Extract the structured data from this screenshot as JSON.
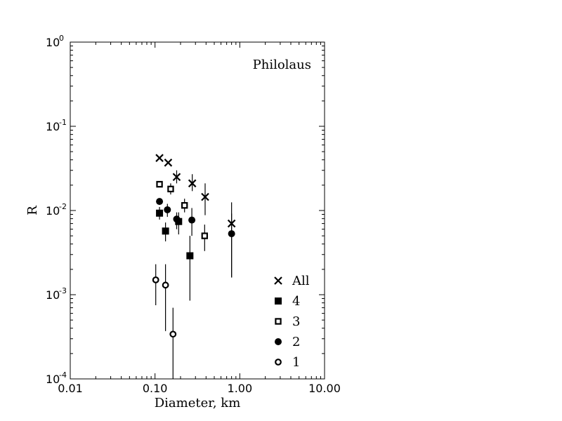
{
  "chart_data": {
    "type": "scatter",
    "title": "",
    "annotation": "Philolaus",
    "xlabel": "Diameter, km",
    "ylabel": "R",
    "xscale": "log",
    "yscale": "log",
    "xlim": [
      0.01,
      10
    ],
    "ylim": [
      0.0001,
      1
    ],
    "x_ticks": [
      {
        "value": 0.01,
        "label": "0.01"
      },
      {
        "value": 0.1,
        "label": "0.10"
      },
      {
        "value": 1,
        "label": "1.00"
      },
      {
        "value": 10,
        "label": "10.00"
      }
    ],
    "y_ticks": [
      {
        "value": 0.0001,
        "base": "10",
        "exp": "-4"
      },
      {
        "value": 0.001,
        "base": "10",
        "exp": "-3"
      },
      {
        "value": 0.01,
        "base": "10",
        "exp": "-2"
      },
      {
        "value": 0.1,
        "base": "10",
        "exp": "-1"
      },
      {
        "value": 1,
        "base": "10",
        "exp": "0"
      }
    ],
    "legend_position": "lower-right",
    "series": [
      {
        "name": "All",
        "marker": "x",
        "points": [
          {
            "x": 0.113,
            "y": 0.042,
            "lo": 0.042,
            "hi": 0.042
          },
          {
            "x": 0.143,
            "y": 0.037,
            "lo": 0.037,
            "hi": 0.037
          },
          {
            "x": 0.18,
            "y": 0.025,
            "lo": 0.021,
            "hi": 0.03
          },
          {
            "x": 0.275,
            "y": 0.021,
            "lo": 0.017,
            "hi": 0.027
          },
          {
            "x": 0.39,
            "y": 0.0145,
            "lo": 0.0088,
            "hi": 0.021
          },
          {
            "x": 0.8,
            "y": 0.007,
            "lo": 0.0016,
            "hi": 0.0125
          }
        ]
      },
      {
        "name": "4",
        "marker": "filled-square",
        "points": [
          {
            "x": 0.113,
            "y": 0.0093,
            "lo": 0.0078,
            "hi": 0.011
          },
          {
            "x": 0.133,
            "y": 0.0057,
            "lo": 0.0043,
            "hi": 0.0072
          },
          {
            "x": 0.19,
            "y": 0.0074,
            "lo": 0.0052,
            "hi": 0.0095
          },
          {
            "x": 0.258,
            "y": 0.0029,
            "lo": 0.00085,
            "hi": 0.005
          }
        ]
      },
      {
        "name": "3",
        "marker": "open-square",
        "points": [
          {
            "x": 0.113,
            "y": 0.0205,
            "lo": 0.0205,
            "hi": 0.0205
          },
          {
            "x": 0.153,
            "y": 0.018,
            "lo": 0.0155,
            "hi": 0.021
          },
          {
            "x": 0.223,
            "y": 0.0115,
            "lo": 0.0095,
            "hi": 0.0138
          },
          {
            "x": 0.385,
            "y": 0.005,
            "lo": 0.0033,
            "hi": 0.0068
          }
        ]
      },
      {
        "name": "2",
        "marker": "filled-circle",
        "points": [
          {
            "x": 0.113,
            "y": 0.0128,
            "lo": 0.0128,
            "hi": 0.0128
          },
          {
            "x": 0.14,
            "y": 0.0102,
            "lo": 0.0084,
            "hi": 0.012
          },
          {
            "x": 0.18,
            "y": 0.0079,
            "lo": 0.006,
            "hi": 0.0095
          },
          {
            "x": 0.272,
            "y": 0.0077,
            "lo": 0.005,
            "hi": 0.0107
          },
          {
            "x": 0.8,
            "y": 0.0053,
            "lo": 0.0016,
            "hi": 0.0092
          }
        ]
      },
      {
        "name": "1",
        "marker": "open-circle",
        "points": [
          {
            "x": 0.102,
            "y": 0.0015,
            "lo": 0.00075,
            "hi": 0.0023
          },
          {
            "x": 0.133,
            "y": 0.0013,
            "lo": 0.00037,
            "hi": 0.0023
          },
          {
            "x": 0.163,
            "y": 0.00034,
            "lo": 0.0001,
            "hi": 0.0007
          }
        ]
      }
    ]
  }
}
